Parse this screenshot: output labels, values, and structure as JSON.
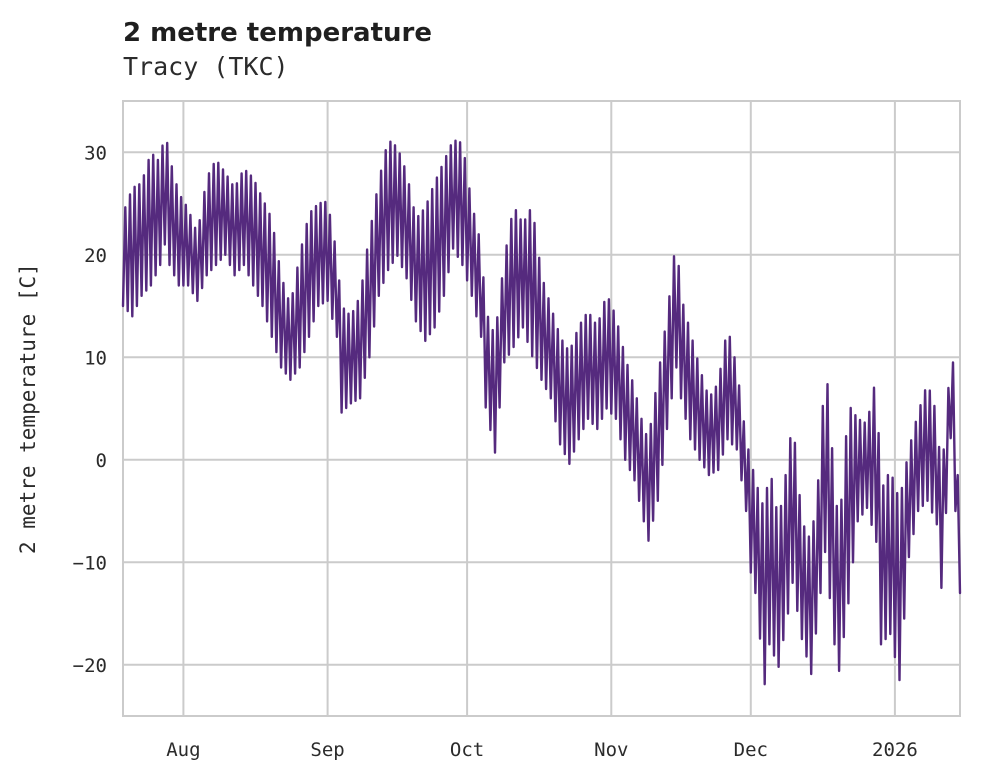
{
  "header": {
    "title": "2 metre temperature",
    "subtitle": "Tracy (TKC)"
  },
  "chart_data": {
    "type": "line",
    "title": "2 metre temperature",
    "subtitle": "Tracy (TKC)",
    "xlabel": "",
    "ylabel": "2 metre temperature [C]",
    "ylim": [
      -25,
      35
    ],
    "x_range_days": [
      0,
      180
    ],
    "x_unit": "days from series start (mid-July to mid-January)",
    "grid": true,
    "legend_position": "none",
    "line_color": "#552a7e",
    "grid_color": "#cbcbcb",
    "ytick_values": [
      -20,
      -10,
      0,
      10,
      20,
      30
    ],
    "ytick_labels": [
      "−20",
      "−10",
      "0",
      "10",
      "20",
      "30"
    ],
    "xticks": [
      {
        "label": "Aug",
        "day": 13
      },
      {
        "label": "Sep",
        "day": 44
      },
      {
        "label": "Oct",
        "day": 74
      },
      {
        "label": "Nov",
        "day": 105
      },
      {
        "label": "Dec",
        "day": 135
      },
      {
        "label": "2026",
        "day": 166
      }
    ],
    "series": [
      {
        "name": "2 metre temperature",
        "unit": "C",
        "envelope_daily_min_max": [
          [
            0,
            15,
            24
          ],
          [
            2,
            14,
            26.5
          ],
          [
            4,
            16,
            27
          ],
          [
            6,
            17,
            30
          ],
          [
            8,
            19,
            29
          ],
          [
            9,
            21,
            32.3
          ],
          [
            10,
            19,
            29.5
          ],
          [
            12,
            17,
            26
          ],
          [
            14,
            17,
            24.5
          ],
          [
            16,
            15.5,
            22
          ],
          [
            18,
            18,
            27.5
          ],
          [
            20,
            19,
            29.3
          ],
          [
            22,
            20,
            28
          ],
          [
            24,
            18,
            26.5
          ],
          [
            26,
            19,
            28.4
          ],
          [
            28,
            17,
            27.5
          ],
          [
            30,
            15,
            25.5
          ],
          [
            32,
            12,
            23.5
          ],
          [
            34,
            9,
            18
          ],
          [
            36,
            7.8,
            15
          ],
          [
            38,
            9,
            20
          ],
          [
            40,
            12,
            24
          ],
          [
            42,
            15,
            25
          ],
          [
            44,
            15.5,
            25.2
          ],
          [
            46,
            12,
            20
          ],
          [
            47,
            4.6,
            15
          ],
          [
            49,
            5.5,
            14
          ],
          [
            51,
            6,
            16
          ],
          [
            53,
            10,
            22
          ],
          [
            55,
            16,
            27.2
          ],
          [
            57,
            18.5,
            31.2
          ],
          [
            59,
            19.9,
            30.5
          ],
          [
            61,
            17.7,
            28
          ],
          [
            63,
            13.5,
            23.5
          ],
          [
            65,
            11.6,
            24.6
          ],
          [
            67,
            12.9,
            27
          ],
          [
            69,
            16,
            29.1
          ],
          [
            71,
            20.6,
            31.2
          ],
          [
            73,
            19,
            30.9
          ],
          [
            75,
            16,
            25
          ],
          [
            77,
            12,
            21
          ],
          [
            78,
            5.1,
            14.6
          ],
          [
            80,
            0.7,
            12
          ],
          [
            82,
            9.5,
            19.6
          ],
          [
            84,
            11,
            24.8
          ],
          [
            86,
            12.9,
            23
          ],
          [
            88,
            10.1,
            24.8
          ],
          [
            90,
            7.8,
            18
          ],
          [
            92,
            6,
            15
          ],
          [
            94,
            1.5,
            12
          ],
          [
            96,
            -0.4,
            10.5
          ],
          [
            98,
            2,
            13
          ],
          [
            100,
            4,
            14.5
          ],
          [
            102,
            3,
            13
          ],
          [
            104,
            5,
            16.2
          ],
          [
            106,
            4,
            14
          ],
          [
            108,
            0,
            10
          ],
          [
            110,
            -2,
            7
          ],
          [
            112,
            -6,
            3
          ],
          [
            113,
            -7.9,
            2
          ],
          [
            115,
            -4,
            8
          ],
          [
            117,
            3,
            14
          ],
          [
            119,
            9,
            21.8
          ],
          [
            120,
            6,
            16
          ],
          [
            122,
            2,
            12.5
          ],
          [
            124,
            0,
            9
          ],
          [
            126,
            -1.5,
            6
          ],
          [
            128,
            -1,
            7.5
          ],
          [
            130,
            2,
            13
          ],
          [
            132,
            1,
            9
          ],
          [
            134,
            -5,
            2
          ],
          [
            135,
            -11,
            0
          ],
          [
            136,
            -13,
            -2
          ],
          [
            138,
            -21.9,
            -5
          ],
          [
            139,
            -18,
            -0.5
          ],
          [
            141,
            -20.2,
            -6
          ],
          [
            143,
            -15,
            0
          ],
          [
            144,
            -12,
            4.2
          ],
          [
            146,
            -17.5,
            -6
          ],
          [
            148,
            -20.9,
            -8
          ],
          [
            150,
            -13,
            0
          ],
          [
            151,
            -9,
            10.5
          ],
          [
            153,
            -18,
            -2
          ],
          [
            154,
            -20.6,
            -7
          ],
          [
            156,
            -14,
            5.4
          ],
          [
            158,
            -6,
            4
          ],
          [
            160,
            -4.7,
            3.5
          ],
          [
            162,
            -8,
            8.2
          ],
          [
            163,
            -18,
            -3
          ],
          [
            165,
            -17,
            -1
          ],
          [
            167,
            -21.5,
            -4
          ],
          [
            169,
            -9.5,
            1
          ],
          [
            171,
            -5,
            4.6
          ],
          [
            173,
            -4,
            7.5
          ],
          [
            175,
            -6.3,
            4.5
          ],
          [
            176,
            -12.5,
            -2
          ],
          [
            178,
            2.1,
            10
          ],
          [
            179,
            -5,
            9
          ],
          [
            180,
            -13,
            -12
          ]
        ]
      }
    ]
  }
}
